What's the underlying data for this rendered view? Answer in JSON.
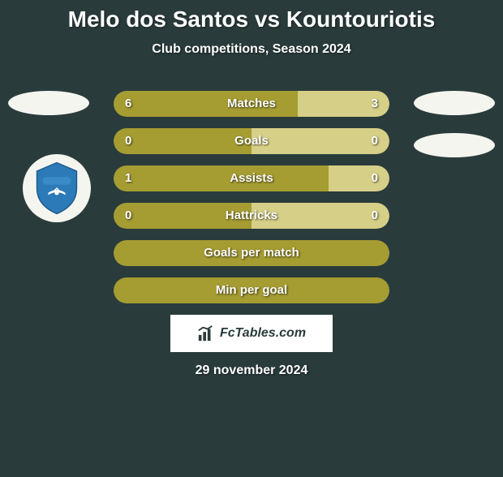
{
  "title": "Melo dos Santos vs Kountouriotis",
  "subtitle": "Club competitions, Season 2024",
  "colors": {
    "background": "#2a3b3b",
    "bar_olive": "#a59c32",
    "bar_light": "#d6cf87",
    "bar_neutral": "#4a5c5c",
    "text": "#ffffff"
  },
  "stats": [
    {
      "label": "Matches",
      "left_value": "6",
      "right_value": "3",
      "left_pct": 66.7,
      "right_pct": 33.3,
      "left_color": "#a59c32",
      "right_color": "#d6cf87",
      "show_values": true
    },
    {
      "label": "Goals",
      "left_value": "0",
      "right_value": "0",
      "left_pct": 50,
      "right_pct": 50,
      "left_color": "#a59c32",
      "right_color": "#d6cf87",
      "show_values": true
    },
    {
      "label": "Assists",
      "left_value": "1",
      "right_value": "0",
      "left_pct": 78,
      "right_pct": 22,
      "left_color": "#a59c32",
      "right_color": "#d6cf87",
      "show_values": true
    },
    {
      "label": "Hattricks",
      "left_value": "0",
      "right_value": "0",
      "left_pct": 50,
      "right_pct": 50,
      "left_color": "#a59c32",
      "right_color": "#d6cf87",
      "show_values": true
    },
    {
      "label": "Goals per match",
      "left_value": "",
      "right_value": "",
      "left_pct": 100,
      "right_pct": 0,
      "left_color": "#a59c32",
      "right_color": "#d6cf87",
      "show_values": false
    },
    {
      "label": "Min per goal",
      "left_value": "",
      "right_value": "",
      "left_pct": 100,
      "right_pct": 0,
      "left_color": "#a59c32",
      "right_color": "#d6cf87",
      "show_values": false
    }
  ],
  "footer_brand": "FcTables.com",
  "footer_date": "29 november 2024"
}
